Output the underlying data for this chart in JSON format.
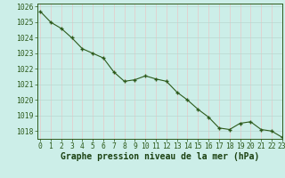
{
  "x": [
    0,
    1,
    2,
    3,
    4,
    5,
    6,
    7,
    8,
    9,
    10,
    11,
    12,
    13,
    14,
    15,
    16,
    17,
    18,
    19,
    20,
    21,
    22,
    23
  ],
  "y": [
    1025.7,
    1025.0,
    1024.6,
    1024.0,
    1023.3,
    1023.0,
    1022.7,
    1021.8,
    1021.2,
    1021.3,
    1021.55,
    1021.35,
    1021.2,
    1020.5,
    1020.0,
    1019.4,
    1018.9,
    1018.2,
    1018.1,
    1018.5,
    1018.6,
    1018.1,
    1018.0,
    1017.6
  ],
  "line_color": "#2d5a1b",
  "marker_color": "#2d5a1b",
  "bg_color": "#cceee8",
  "grid_color_major_h": "#b8d8d0",
  "grid_color_major_v": "#e8c8c8",
  "xlabel": "Graphe pression niveau de la mer (hPa)",
  "ylim_min": 1017.5,
  "ylim_max": 1026.2,
  "xlim_min": -0.3,
  "xlim_max": 23,
  "yticks": [
    1018,
    1019,
    1020,
    1021,
    1022,
    1023,
    1024,
    1025,
    1026
  ],
  "xticks": [
    0,
    1,
    2,
    3,
    4,
    5,
    6,
    7,
    8,
    9,
    10,
    11,
    12,
    13,
    14,
    15,
    16,
    17,
    18,
    19,
    20,
    21,
    22,
    23
  ],
  "tick_label_fontsize": 5.8,
  "xlabel_fontsize": 7.0,
  "xlabel_color": "#1a4010",
  "tick_color": "#2d5a1b",
  "axis_color": "#2d5a1b"
}
